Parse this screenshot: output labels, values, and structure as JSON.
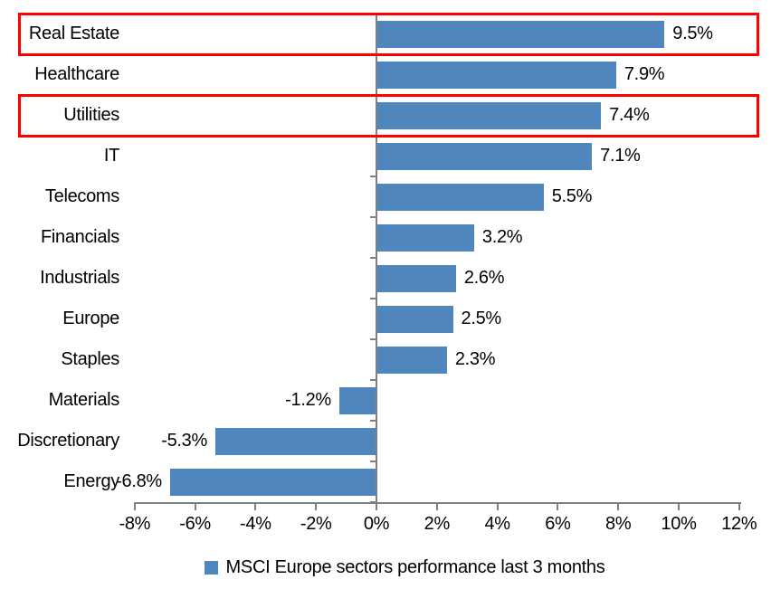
{
  "chart_data": {
    "type": "bar",
    "orientation": "horizontal",
    "legend_label": "MSCI Europe sectors performance last 3 months",
    "legend_position": "bottom-center",
    "grid": false,
    "xlim": [
      -8,
      12
    ],
    "xlabel": "",
    "ylabel": "",
    "bar_color": "#4E86BD",
    "highlight_box_color": "#FF0000",
    "axis_color": "#808080",
    "text_color": "#000000",
    "categories": [
      "Real Estate",
      "Healthcare",
      "Utilities",
      "IT",
      "Telecoms",
      "Financials",
      "Industrials",
      "Europe",
      "Staples",
      "Materials",
      "Discretionary",
      "Energy"
    ],
    "values": [
      9.5,
      7.9,
      7.4,
      7.1,
      5.5,
      3.2,
      2.6,
      2.5,
      2.3,
      -1.2,
      -5.3,
      -6.8
    ],
    "bars": [
      {
        "label": "Real Estate",
        "value": 9.5,
        "value_label": "9.5%",
        "highlighted": true
      },
      {
        "label": "Healthcare",
        "value": 7.9,
        "value_label": "7.9%",
        "highlighted": false
      },
      {
        "label": "Utilities",
        "value": 7.4,
        "value_label": "7.4%",
        "highlighted": true
      },
      {
        "label": "IT",
        "value": 7.1,
        "value_label": "7.1%",
        "highlighted": false
      },
      {
        "label": "Telecoms",
        "value": 5.5,
        "value_label": "5.5%",
        "highlighted": false
      },
      {
        "label": "Financials",
        "value": 3.2,
        "value_label": "3.2%",
        "highlighted": false
      },
      {
        "label": "Industrials",
        "value": 2.6,
        "value_label": "2.6%",
        "highlighted": false
      },
      {
        "label": "Europe",
        "value": 2.5,
        "value_label": "2.5%",
        "highlighted": false
      },
      {
        "label": "Staples",
        "value": 2.3,
        "value_label": "2.3%",
        "highlighted": false
      },
      {
        "label": "Materials",
        "value": -1.2,
        "value_label": "-1.2%",
        "highlighted": false
      },
      {
        "label": "Discretionary",
        "value": -5.3,
        "value_label": "-5.3%",
        "highlighted": false
      },
      {
        "label": "Energy",
        "value": -6.8,
        "value_label": "-6.8%",
        "highlighted": false
      }
    ],
    "x_axis": {
      "ticks": [
        {
          "value": -8,
          "label": "-8%"
        },
        {
          "value": -6,
          "label": "-6%"
        },
        {
          "value": -4,
          "label": "-4%"
        },
        {
          "value": -2,
          "label": "-2%"
        },
        {
          "value": 0,
          "label": "0%"
        },
        {
          "value": 2,
          "label": "2%"
        },
        {
          "value": 4,
          "label": "4%"
        },
        {
          "value": 6,
          "label": "6%"
        },
        {
          "value": 8,
          "label": "8%"
        },
        {
          "value": 10,
          "label": "10%"
        },
        {
          "value": 12,
          "label": "12%"
        }
      ]
    }
  }
}
